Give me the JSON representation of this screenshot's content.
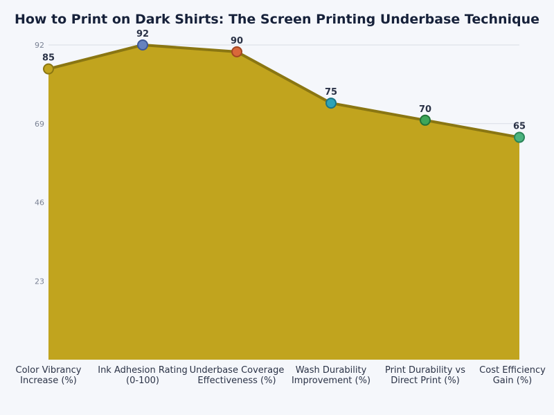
{
  "chart_data": {
    "type": "area",
    "title": "How to Print on Dark Shirts: The Screen Printing Underbase Technique",
    "categories": [
      [
        "Color Vibrancy",
        "Increase (%)"
      ],
      [
        "Ink Adhesion Rating",
        "(0-100)"
      ],
      [
        "Underbase Coverage",
        "Effectiveness (%)"
      ],
      [
        "Wash Durability",
        "Improvement (%)"
      ],
      [
        "Print Durability vs",
        "Direct Print (%)"
      ],
      [
        "Cost Efficiency",
        "Gain (%)"
      ]
    ],
    "values": [
      85,
      92,
      90,
      75,
      70,
      65
    ],
    "yticks": [
      23,
      46,
      69,
      92
    ],
    "ylim": [
      0,
      92
    ],
    "grid": true,
    "xlabel": "",
    "ylabel": "",
    "colors": {
      "area_fill": "#c1a41e",
      "line": "#8a7612",
      "markers": [
        "#c1a41e",
        "#6682bf",
        "#d9683a",
        "#2ea3b8",
        "#3ea65a",
        "#4bb37f"
      ],
      "marker_strokes": [
        "#8a7612",
        "#3e5795",
        "#a24623",
        "#1b7485",
        "#237339",
        "#2b8457"
      ]
    }
  }
}
